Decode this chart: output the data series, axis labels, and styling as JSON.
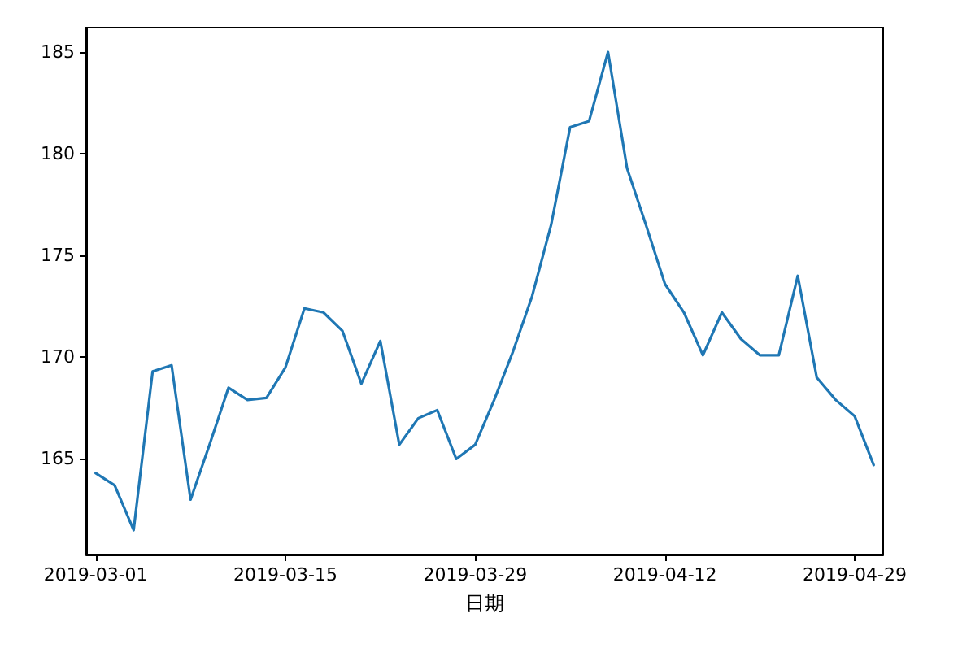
{
  "chart_data": {
    "type": "line",
    "xlabel": "日期",
    "categories": [
      "2019-03-01",
      null,
      null,
      null,
      null,
      null,
      null,
      null,
      null,
      null,
      "2019-03-15",
      null,
      null,
      null,
      null,
      null,
      null,
      null,
      null,
      null,
      "2019-03-29",
      null,
      null,
      null,
      null,
      null,
      null,
      null,
      null,
      null,
      "2019-04-12",
      null,
      null,
      null,
      null,
      null,
      null,
      null,
      null,
      null,
      "2019-04-29",
      null
    ],
    "series": [
      {
        "color": "#1f77b4",
        "values": [
          164.3,
          163.7,
          161.5,
          169.3,
          169.6,
          163.0,
          165.7,
          168.5,
          167.9,
          168.0,
          169.5,
          172.4,
          172.2,
          171.3,
          168.7,
          170.8,
          165.7,
          167.0,
          167.4,
          165.0,
          165.7,
          167.9,
          170.3,
          173.0,
          176.5,
          181.3,
          181.6,
          185.0,
          179.3,
          176.5,
          173.6,
          172.2,
          170.1,
          172.2,
          170.9,
          170.1,
          170.1,
          174.0,
          169.0,
          167.9,
          167.1,
          164.7
        ]
      }
    ],
    "ylim": [
      160.3,
      186.2
    ],
    "yticks": [
      165,
      170,
      175,
      180,
      185
    ],
    "grid": false,
    "marker": "none",
    "line_style": "solid"
  }
}
